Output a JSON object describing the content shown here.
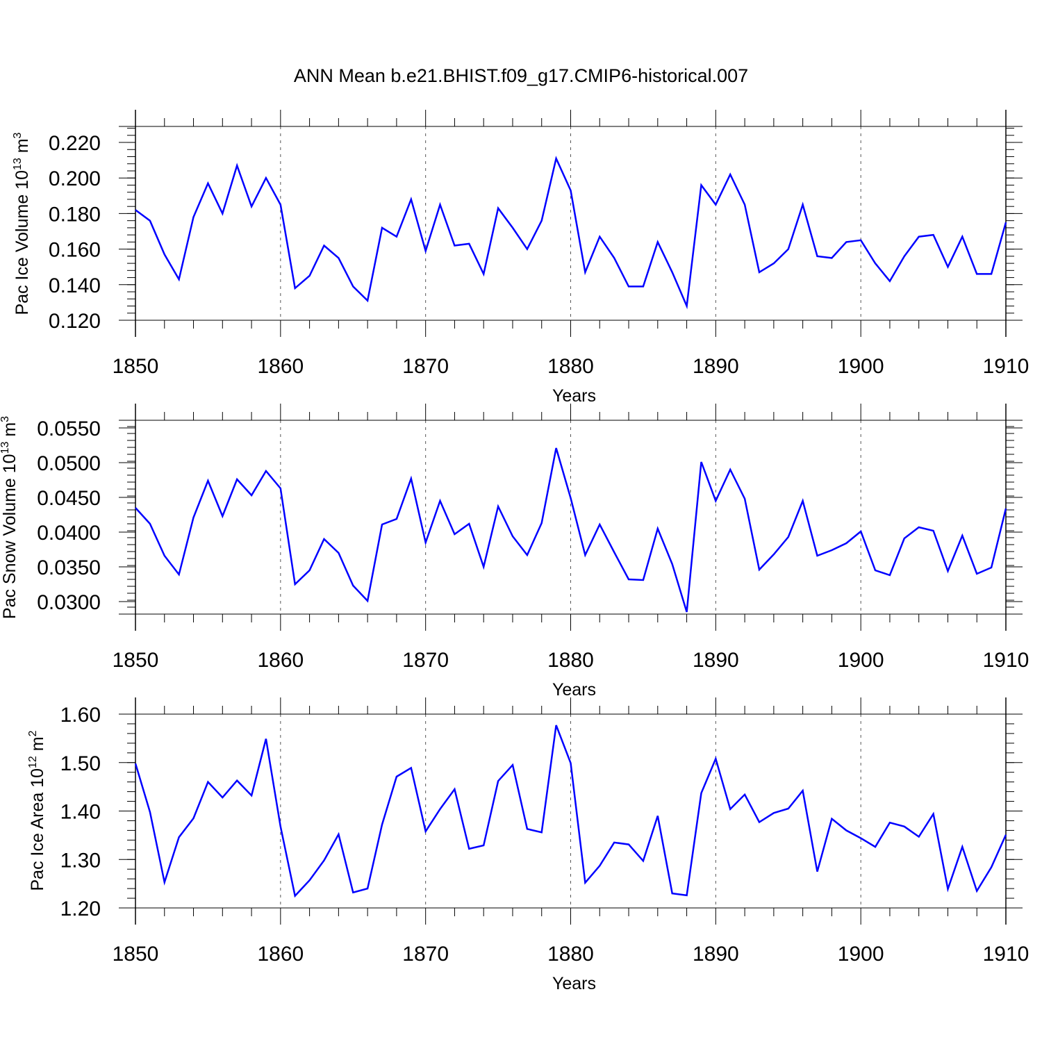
{
  "title": "ANN Mean b.e21.BHIST.f09_g17.CMIP6-historical.007",
  "line_color": "#0000ff",
  "chart_data": [
    {
      "type": "line",
      "xlabel": "Years",
      "ylabel": "Pac Ice Volume 10",
      "ylabel_exp": "13",
      "ylabel_unit": " m",
      "ylabel_unit_exp": "3",
      "xlim": [
        1850,
        1910
      ],
      "ylim": [
        0.12,
        0.229
      ],
      "xticks": [
        1850,
        1860,
        1870,
        1880,
        1890,
        1900,
        1910
      ],
      "xtick_labels": [
        "1850",
        "1860",
        "1870",
        "1880",
        "1890",
        "1900",
        "1910"
      ],
      "yticks": [
        0.12,
        0.14,
        0.16,
        0.18,
        0.2,
        0.22
      ],
      "ytick_labels": [
        "0.120",
        "0.140",
        "0.160",
        "0.180",
        "0.200",
        "0.220"
      ],
      "yminor_step": 0.004,
      "grid": "dashed vertical at major x ticks",
      "series": [
        {
          "name": "Pac Ice Volume",
          "x": [
            1850,
            1851,
            1852,
            1853,
            1854,
            1855,
            1856,
            1857,
            1858,
            1859,
            1860,
            1861,
            1862,
            1863,
            1864,
            1865,
            1866,
            1867,
            1868,
            1869,
            1870,
            1871,
            1872,
            1873,
            1874,
            1875,
            1876,
            1877,
            1878,
            1879,
            1880,
            1881,
            1882,
            1883,
            1884,
            1885,
            1886,
            1887,
            1888,
            1889,
            1890,
            1891,
            1892,
            1893,
            1894,
            1895,
            1896,
            1897,
            1898,
            1899,
            1900,
            1901,
            1902,
            1903,
            1904,
            1905,
            1906,
            1907,
            1908,
            1909,
            1910
          ],
          "values": [
            0.182,
            0.176,
            0.157,
            0.143,
            0.178,
            0.197,
            0.18,
            0.207,
            0.184,
            0.2,
            0.185,
            0.138,
            0.145,
            0.162,
            0.155,
            0.139,
            0.131,
            0.172,
            0.167,
            0.188,
            0.159,
            0.185,
            0.162,
            0.163,
            0.146,
            0.183,
            0.172,
            0.16,
            0.176,
            0.211,
            0.193,
            0.147,
            0.167,
            0.155,
            0.139,
            0.139,
            0.164,
            0.147,
            0.128,
            0.196,
            0.185,
            0.202,
            0.185,
            0.147,
            0.152,
            0.16,
            0.185,
            0.156,
            0.155,
            0.164,
            0.165,
            0.152,
            0.142,
            0.156,
            0.167,
            0.168,
            0.15,
            0.167,
            0.146,
            0.146,
            0.175
          ]
        }
      ]
    },
    {
      "type": "line",
      "xlabel": "Years",
      "ylabel": "Pac Snow Volume 10",
      "ylabel_exp": "13",
      "ylabel_unit": " m",
      "ylabel_unit_exp": "3",
      "xlim": [
        1850,
        1910
      ],
      "ylim": [
        0.0282,
        0.0561
      ],
      "xticks": [
        1850,
        1860,
        1870,
        1880,
        1890,
        1900,
        1910
      ],
      "xtick_labels": [
        "1850",
        "1860",
        "1870",
        "1880",
        "1890",
        "1900",
        "1910"
      ],
      "yticks": [
        0.03,
        0.035,
        0.04,
        0.045,
        0.05,
        0.055
      ],
      "ytick_labels": [
        "0.0300",
        "0.0350",
        "0.0400",
        "0.0450",
        "0.0500",
        "0.0550"
      ],
      "yminor_step": 0.001,
      "grid": "dashed vertical at major x ticks",
      "series": [
        {
          "name": "Pac Snow Volume",
          "x": [
            1850,
            1851,
            1852,
            1853,
            1854,
            1855,
            1856,
            1857,
            1858,
            1859,
            1860,
            1861,
            1862,
            1863,
            1864,
            1865,
            1866,
            1867,
            1868,
            1869,
            1870,
            1871,
            1872,
            1873,
            1874,
            1875,
            1876,
            1877,
            1878,
            1879,
            1880,
            1881,
            1882,
            1883,
            1884,
            1885,
            1886,
            1887,
            1888,
            1889,
            1890,
            1891,
            1892,
            1893,
            1894,
            1895,
            1896,
            1897,
            1898,
            1899,
            1900,
            1901,
            1902,
            1903,
            1904,
            1905,
            1906,
            1907,
            1908,
            1909,
            1910
          ],
          "values": [
            0.0435,
            0.0412,
            0.0366,
            0.0339,
            0.0421,
            0.0474,
            0.0423,
            0.0476,
            0.0453,
            0.0488,
            0.0463,
            0.0325,
            0.0345,
            0.039,
            0.037,
            0.0323,
            0.0301,
            0.0411,
            0.0419,
            0.0477,
            0.0385,
            0.0445,
            0.0397,
            0.0412,
            0.035,
            0.0437,
            0.0394,
            0.0367,
            0.0413,
            0.0521,
            0.0449,
            0.0367,
            0.0411,
            0.0371,
            0.0332,
            0.0331,
            0.0405,
            0.0354,
            0.0285,
            0.0501,
            0.0445,
            0.049,
            0.0448,
            0.0346,
            0.0368,
            0.0393,
            0.0445,
            0.0366,
            0.0374,
            0.0384,
            0.0401,
            0.0345,
            0.0338,
            0.0391,
            0.0407,
            0.0402,
            0.0344,
            0.0395,
            0.034,
            0.0349,
            0.0434
          ]
        }
      ]
    },
    {
      "type": "line",
      "xlabel": "Years",
      "ylabel": "Pac Ice Area 10",
      "ylabel_exp": "12",
      "ylabel_unit": " m",
      "ylabel_unit_exp": "2",
      "xlim": [
        1850,
        1910
      ],
      "ylim": [
        1.2,
        1.6
      ],
      "xticks": [
        1850,
        1860,
        1870,
        1880,
        1890,
        1900,
        1910
      ],
      "xtick_labels": [
        "1850",
        "1860",
        "1870",
        "1880",
        "1890",
        "1900",
        "1910"
      ],
      "yticks": [
        1.2,
        1.3,
        1.4,
        1.5,
        1.6
      ],
      "ytick_labels": [
        "1.20",
        "1.30",
        "1.40",
        "1.50",
        "1.60"
      ],
      "yminor_step": 0.02,
      "grid": "dashed vertical at major x ticks",
      "series": [
        {
          "name": "Pac Ice Area",
          "x": [
            1850,
            1851,
            1852,
            1853,
            1854,
            1855,
            1856,
            1857,
            1858,
            1859,
            1860,
            1861,
            1862,
            1863,
            1864,
            1865,
            1866,
            1867,
            1868,
            1869,
            1870,
            1871,
            1872,
            1873,
            1874,
            1875,
            1876,
            1877,
            1878,
            1879,
            1880,
            1881,
            1882,
            1883,
            1884,
            1885,
            1886,
            1887,
            1888,
            1889,
            1890,
            1891,
            1892,
            1893,
            1894,
            1895,
            1896,
            1897,
            1898,
            1899,
            1900,
            1901,
            1902,
            1903,
            1904,
            1905,
            1906,
            1907,
            1908,
            1909,
            1910
          ],
          "values": [
            1.498,
            1.398,
            1.253,
            1.346,
            1.385,
            1.46,
            1.428,
            1.463,
            1.432,
            1.549,
            1.368,
            1.225,
            1.257,
            1.298,
            1.352,
            1.232,
            1.24,
            1.372,
            1.471,
            1.489,
            1.358,
            1.404,
            1.445,
            1.322,
            1.329,
            1.462,
            1.495,
            1.363,
            1.356,
            1.577,
            1.499,
            1.252,
            1.287,
            1.335,
            1.331,
            1.297,
            1.39,
            1.23,
            1.226,
            1.437,
            1.508,
            1.404,
            1.434,
            1.377,
            1.396,
            1.405,
            1.442,
            1.275,
            1.384,
            1.36,
            1.344,
            1.326,
            1.376,
            1.368,
            1.347,
            1.394,
            1.239,
            1.326,
            1.235,
            1.284,
            1.351
          ]
        }
      ]
    }
  ]
}
